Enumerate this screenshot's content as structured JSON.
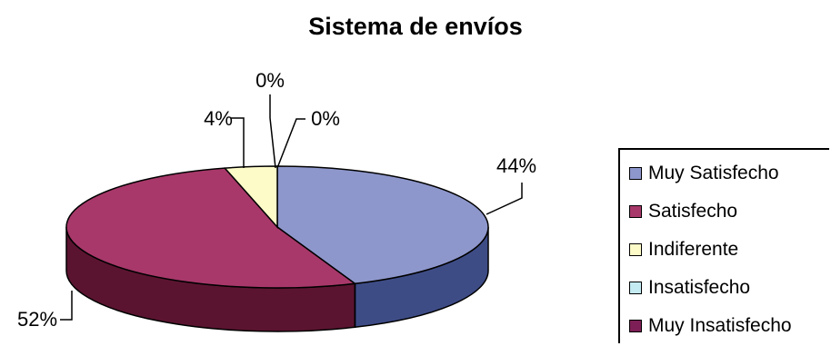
{
  "chart_data": {
    "type": "pie",
    "title": "Sistema de envíos",
    "categories": [
      "Muy Satisfecho",
      "Satisfecho",
      "Indiferente",
      "Insatisfecho",
      "Muy Insatisfecho"
    ],
    "values": [
      44,
      52,
      4,
      0,
      0
    ],
    "data_labels": [
      "44%",
      "52%",
      "4%",
      "0%",
      "0%"
    ],
    "colors": [
      "#8e97cc",
      "#a8386a",
      "#fdfbc8",
      "#c4eaf2",
      "#7d1f56"
    ],
    "side_colors": [
      "#3e4c86",
      "#5b1430",
      "#9a9775",
      "#5f8a92",
      "#3f0c2a"
    ],
    "three_d": true,
    "legend": "right"
  }
}
